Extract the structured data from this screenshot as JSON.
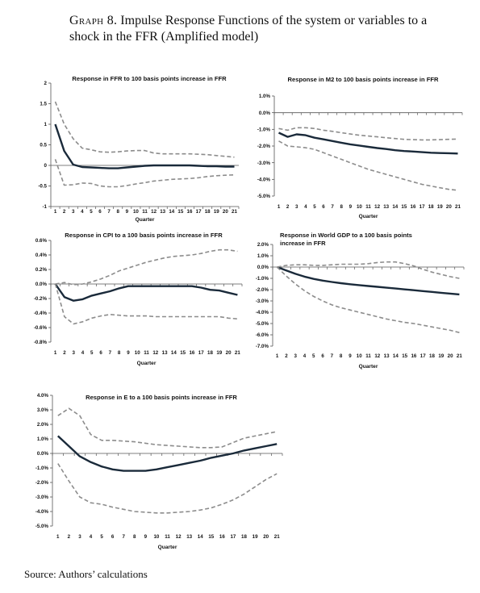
{
  "page_title": {
    "graph_no": "Graph 8.",
    "text": "Impulse Response Functions of the system or variables to a shock in the FFR (Amplified model)"
  },
  "source": "Source: Authors’ calculations",
  "chart_data": [
    {
      "type": "line",
      "title": "Response in FFR to 100 basis points increase in FFR",
      "xlabel": "Quarter",
      "ylabel": "",
      "x": [
        1,
        2,
        3,
        4,
        5,
        6,
        7,
        8,
        9,
        10,
        11,
        12,
        13,
        14,
        15,
        16,
        17,
        18,
        19,
        20,
        21
      ],
      "ylim": [
        -1,
        2
      ],
      "yticks": [
        -1,
        -0.5,
        0,
        0.5,
        1,
        1.5,
        2
      ],
      "ytick_labels": [
        "-1",
        "-0.5",
        "0",
        "0.5",
        "1",
        "1.5",
        "2"
      ],
      "grid": false,
      "series": [
        {
          "role": "response",
          "color": "#1a2a3a",
          "dashed": false,
          "values": [
            1.0,
            0.35,
            0.02,
            -0.04,
            -0.05,
            -0.06,
            -0.07,
            -0.07,
            -0.05,
            -0.03,
            -0.01,
            0.0,
            0.0,
            0.0,
            0.0,
            0.0,
            -0.01,
            -0.02,
            -0.02,
            -0.03,
            -0.03
          ]
        },
        {
          "role": "upper",
          "color": "#8c8c8c",
          "dashed": true,
          "values": [
            1.55,
            1.0,
            0.65,
            0.42,
            0.38,
            0.33,
            0.32,
            0.33,
            0.35,
            0.36,
            0.36,
            0.3,
            0.28,
            0.28,
            0.28,
            0.28,
            0.27,
            0.26,
            0.24,
            0.22,
            0.2
          ]
        },
        {
          "role": "lower",
          "color": "#8c8c8c",
          "dashed": true,
          "values": [
            0.15,
            -0.48,
            -0.47,
            -0.43,
            -0.44,
            -0.5,
            -0.52,
            -0.52,
            -0.49,
            -0.45,
            -0.42,
            -0.38,
            -0.36,
            -0.34,
            -0.33,
            -0.32,
            -0.3,
            -0.27,
            -0.25,
            -0.24,
            -0.23
          ]
        }
      ]
    },
    {
      "type": "line",
      "title": "Response in M2 to 100 basis points increase in FFR",
      "xlabel": "Quarter",
      "ylabel": "",
      "x": [
        1,
        2,
        3,
        4,
        5,
        6,
        7,
        8,
        9,
        10,
        11,
        12,
        13,
        14,
        15,
        16,
        17,
        18,
        19,
        20,
        21
      ],
      "ylim": [
        -5,
        1
      ],
      "yticks": [
        -5,
        -4,
        -3,
        -2,
        -1,
        0,
        1
      ],
      "ytick_labels": [
        "-5.0%",
        "-4.0%",
        "-3.0%",
        "-2.0%",
        "-1.0%",
        "0.0%",
        "1.0%"
      ],
      "grid": false,
      "series": [
        {
          "role": "response",
          "color": "#1a2a3a",
          "dashed": false,
          "values": [
            -1.2,
            -1.45,
            -1.3,
            -1.35,
            -1.5,
            -1.6,
            -1.7,
            -1.8,
            -1.9,
            -1.97,
            -2.05,
            -2.12,
            -2.18,
            -2.25,
            -2.3,
            -2.33,
            -2.37,
            -2.4,
            -2.42,
            -2.43,
            -2.45
          ]
        },
        {
          "role": "upper",
          "color": "#8c8c8c",
          "dashed": true,
          "values": [
            -0.95,
            -1.05,
            -0.9,
            -0.9,
            -0.95,
            -1.05,
            -1.12,
            -1.2,
            -1.28,
            -1.35,
            -1.4,
            -1.45,
            -1.5,
            -1.55,
            -1.6,
            -1.62,
            -1.63,
            -1.63,
            -1.62,
            -1.6,
            -1.58
          ]
        },
        {
          "role": "lower",
          "color": "#8c8c8c",
          "dashed": true,
          "values": [
            -1.7,
            -2.0,
            -2.05,
            -2.1,
            -2.2,
            -2.4,
            -2.6,
            -2.8,
            -3.0,
            -3.2,
            -3.4,
            -3.55,
            -3.7,
            -3.85,
            -4.0,
            -4.15,
            -4.3,
            -4.4,
            -4.5,
            -4.6,
            -4.65
          ]
        }
      ]
    },
    {
      "type": "line",
      "title": "Response in CPI to a 100 basis points increase in FFR",
      "xlabel": "Quarter",
      "ylabel": "",
      "x": [
        1,
        2,
        3,
        4,
        5,
        6,
        7,
        8,
        9,
        10,
        11,
        12,
        13,
        14,
        15,
        16,
        17,
        18,
        19,
        20,
        21
      ],
      "ylim": [
        -0.8,
        0.6
      ],
      "yticks": [
        -0.8,
        -0.6,
        -0.4,
        -0.2,
        0.0,
        0.2,
        0.4,
        0.6
      ],
      "ytick_labels": [
        "-0.8%",
        "-0.6%",
        "-0.4%",
        "-0.2%",
        "0.0%",
        "0.2%",
        "0.4%",
        "0.6%"
      ],
      "grid": false,
      "series": [
        {
          "role": "response",
          "color": "#1a2a3a",
          "dashed": false,
          "values": [
            0.0,
            -0.18,
            -0.23,
            -0.21,
            -0.16,
            -0.13,
            -0.1,
            -0.06,
            -0.03,
            -0.03,
            -0.03,
            -0.03,
            -0.03,
            -0.03,
            -0.03,
            -0.03,
            -0.05,
            -0.08,
            -0.09,
            -0.12,
            -0.15
          ]
        },
        {
          "role": "upper",
          "color": "#8c8c8c",
          "dashed": true,
          "values": [
            0.0,
            0.02,
            -0.01,
            0.0,
            0.03,
            0.07,
            0.12,
            0.18,
            0.22,
            0.26,
            0.3,
            0.33,
            0.36,
            0.38,
            0.39,
            0.4,
            0.42,
            0.45,
            0.47,
            0.47,
            0.45
          ]
        },
        {
          "role": "lower",
          "color": "#8c8c8c",
          "dashed": true,
          "values": [
            0.0,
            -0.45,
            -0.55,
            -0.52,
            -0.47,
            -0.44,
            -0.42,
            -0.43,
            -0.44,
            -0.44,
            -0.44,
            -0.45,
            -0.45,
            -0.45,
            -0.45,
            -0.45,
            -0.45,
            -0.45,
            -0.45,
            -0.47,
            -0.48
          ]
        }
      ]
    },
    {
      "type": "line",
      "title": "Response in World GDP to a 100 basis points increase in FFR",
      "xlabel": "Quarter",
      "ylabel": "",
      "x": [
        1,
        2,
        3,
        4,
        5,
        6,
        7,
        8,
        9,
        10,
        11,
        12,
        13,
        14,
        15,
        16,
        17,
        18,
        19,
        20,
        21
      ],
      "ylim": [
        -7,
        2
      ],
      "yticks": [
        -7,
        -6,
        -5,
        -4,
        -3,
        -2,
        -1,
        0,
        1,
        2
      ],
      "ytick_labels": [
        "-7.0%",
        "-6.0%",
        "-5.0%",
        "-4.0%",
        "-3.0%",
        "-2.0%",
        "-1.0%",
        "0.0%",
        "1.0%",
        "2.0%"
      ],
      "grid": false,
      "series": [
        {
          "role": "response",
          "color": "#1a2a3a",
          "dashed": false,
          "values": [
            0.0,
            -0.3,
            -0.6,
            -0.85,
            -1.05,
            -1.2,
            -1.32,
            -1.43,
            -1.52,
            -1.6,
            -1.68,
            -1.75,
            -1.83,
            -1.9,
            -1.98,
            -2.05,
            -2.13,
            -2.2,
            -2.28,
            -2.35,
            -2.42
          ]
        },
        {
          "role": "upper",
          "color": "#8c8c8c",
          "dashed": true,
          "values": [
            0.0,
            0.15,
            0.2,
            0.2,
            0.15,
            0.15,
            0.2,
            0.25,
            0.25,
            0.25,
            0.3,
            0.4,
            0.45,
            0.45,
            0.3,
            0.1,
            -0.2,
            -0.45,
            -0.65,
            -0.85,
            -1.0
          ]
        },
        {
          "role": "lower",
          "color": "#8c8c8c",
          "dashed": true,
          "values": [
            0.0,
            -0.8,
            -1.5,
            -2.1,
            -2.6,
            -3.0,
            -3.35,
            -3.6,
            -3.8,
            -4.0,
            -4.2,
            -4.4,
            -4.6,
            -4.75,
            -4.9,
            -5.0,
            -5.15,
            -5.3,
            -5.45,
            -5.6,
            -5.8
          ]
        }
      ]
    },
    {
      "type": "line",
      "title": "Response in E to a 100 basis points increase in FFR",
      "xlabel": "Quarter",
      "ylabel": "",
      "x": [
        1,
        2,
        3,
        4,
        5,
        6,
        7,
        8,
        9,
        10,
        11,
        12,
        13,
        14,
        15,
        16,
        17,
        18,
        19,
        20,
        21
      ],
      "ylim": [
        -5,
        4
      ],
      "yticks": [
        -5,
        -4,
        -3,
        -2,
        -1,
        0,
        1,
        2,
        3,
        4
      ],
      "ytick_labels": [
        "-5.0%",
        "-4.0%",
        "-3.0%",
        "-2.0%",
        "-1.0%",
        "0.0%",
        "1.0%",
        "2.0%",
        "3.0%",
        "4.0%"
      ],
      "grid": false,
      "series": [
        {
          "role": "response",
          "color": "#1a2a3a",
          "dashed": false,
          "values": [
            1.2,
            0.5,
            -0.2,
            -0.6,
            -0.9,
            -1.1,
            -1.2,
            -1.2,
            -1.2,
            -1.1,
            -0.95,
            -0.8,
            -0.65,
            -0.5,
            -0.3,
            -0.15,
            0.0,
            0.2,
            0.35,
            0.5,
            0.65
          ]
        },
        {
          "role": "upper",
          "color": "#8c8c8c",
          "dashed": true,
          "values": [
            2.6,
            3.1,
            2.6,
            1.3,
            0.9,
            0.9,
            0.85,
            0.8,
            0.7,
            0.6,
            0.55,
            0.5,
            0.45,
            0.4,
            0.4,
            0.45,
            0.75,
            1.05,
            1.2,
            1.35,
            1.5
          ]
        },
        {
          "role": "lower",
          "color": "#8c8c8c",
          "dashed": true,
          "values": [
            -0.7,
            -1.9,
            -3.0,
            -3.4,
            -3.5,
            -3.7,
            -3.85,
            -4.0,
            -4.05,
            -4.1,
            -4.1,
            -4.05,
            -4.0,
            -3.9,
            -3.75,
            -3.5,
            -3.2,
            -2.8,
            -2.3,
            -1.8,
            -1.4
          ]
        }
      ]
    }
  ]
}
